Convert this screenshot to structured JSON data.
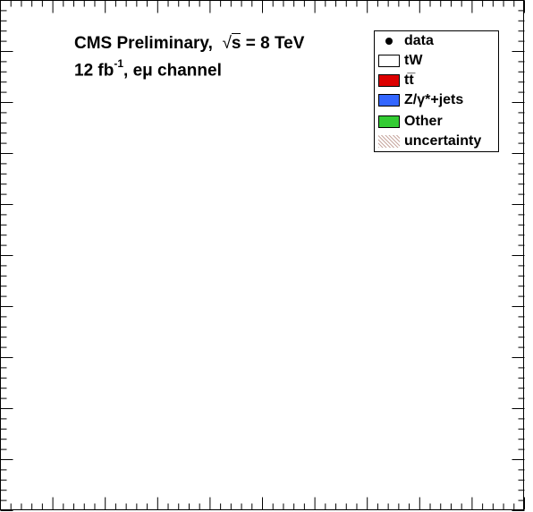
{
  "chart_data": {
    "type": "bar",
    "title": "",
    "xlabel": "",
    "ylabel": "",
    "annotation": {
      "experiment": "CMS Preliminary,",
      "energy_label": "s",
      "energy_value": " = 8 TeV",
      "lumi_prefix": "12 fb",
      "lumi_exponent": "-1",
      "lumi_suffix": ", eμ channel"
    },
    "legend": {
      "placement": "top-right",
      "entries": [
        {
          "label": "data",
          "style": "marker",
          "color": "#000000"
        },
        {
          "label": "tW",
          "style": "fill",
          "color": "#ffffff"
        },
        {
          "label": "tt̅",
          "style": "fill",
          "color": "#dd0000"
        },
        {
          "label": "Z/γ*+jets",
          "style": "fill",
          "color": "#3366ff"
        },
        {
          "label": "Other",
          "style": "fill",
          "color": "#33cc33"
        },
        {
          "label": "uncertainty",
          "style": "hatch",
          "color": "#c8a8a0"
        }
      ]
    },
    "series": [],
    "grid": false
  }
}
